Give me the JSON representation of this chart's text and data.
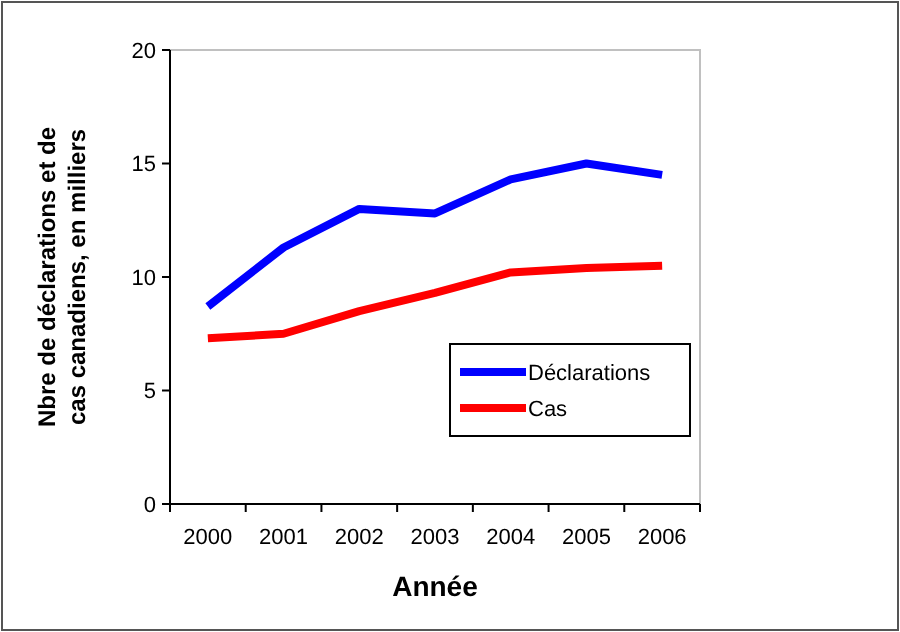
{
  "chart_data": {
    "type": "line",
    "xlabel": "Année",
    "ylabel": "Nbre de déclarations et de cas canadiens, en milliers",
    "categories": [
      "2000",
      "2001",
      "2002",
      "2003",
      "2004",
      "2005",
      "2006"
    ],
    "series": [
      {
        "name": "Déclarations",
        "color": "#0000ff",
        "values": [
          8.7,
          11.3,
          13.0,
          12.8,
          14.3,
          15.0,
          14.5
        ]
      },
      {
        "name": "Cas",
        "color": "#ff0000",
        "values": [
          7.3,
          7.5,
          8.5,
          9.3,
          10.2,
          10.4,
          10.5
        ]
      }
    ],
    "ylim": [
      0,
      20
    ],
    "yticks": [
      0,
      5,
      10,
      15,
      20
    ],
    "grid": false,
    "legend": "bottom right",
    "marker": "none",
    "line_style": "solid"
  }
}
